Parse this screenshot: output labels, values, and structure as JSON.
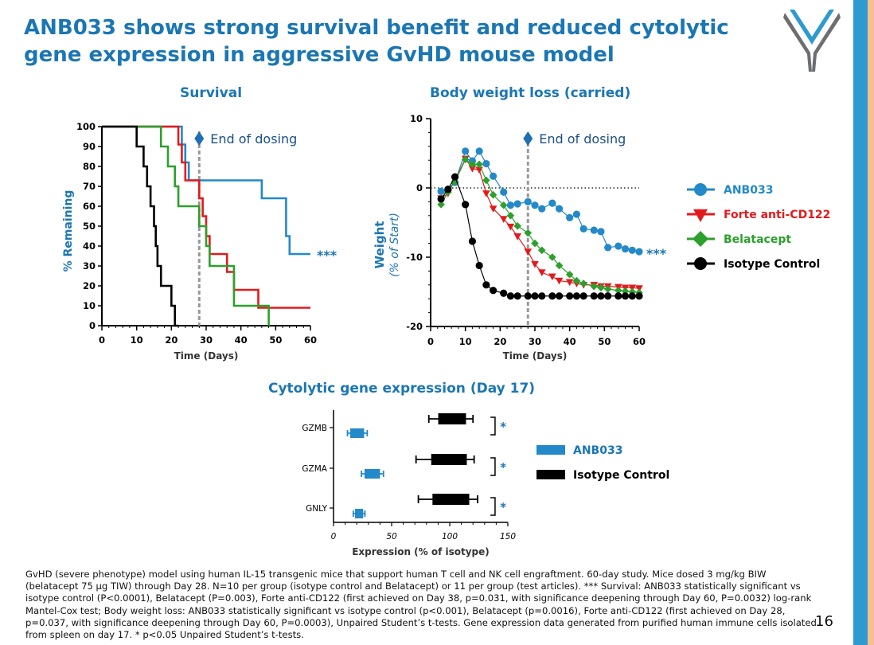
{
  "slide": {
    "title": "ANB033 shows strong survival benefit and reduced cytolytic gene expression in aggressive GvHD mouse model",
    "page_number": "16",
    "footnote": "GvHD (severe phenotype) model using human IL-15 transgenic mice that support human T cell and NK cell engraftment. 60-day study.  Mice dosed 3 mg/kg BIW (belatacept 75 µg TIW) through Day 28. N=10 per group (isotype control and Belatacept) or 11 per group (test articles). *** Survival: ANB033 statistically significant vs isotype control (P<0.0001), Belatacept (P=0.003), Forte anti-CD122 (first achieved on Day 38, p=0.031, with significance deepening through Day 60, P=0.0032) log-rank Mantel-Cox test; Body weight loss: ANB033 statistically significant vs isotype control (p<0.001), Belatacept (p=0.0016), Forte anti-CD122 (first achieved on Day 28, p=0.037, with significance deepening through Day 60, P=0.0003), Unpaired Student’s t-tests. Gene expression data generated from purified human immune cells isolated from spleen on day 17. * p<0.05 Unpaired Student’s t-tests.",
    "colors": {
      "title": "#1b76b4",
      "accent_blue": "#2e9bd0",
      "accent_peach": "#f6c08e"
    }
  },
  "legend_main": [
    {
      "label": "ANB033",
      "color": "#2389c9",
      "marker": "circle"
    },
    {
      "label": "Forte anti-CD122",
      "color": "#e31a1c",
      "marker": "triangle-down"
    },
    {
      "label": "Belatacept",
      "color": "#2ca02c",
      "marker": "diamond"
    },
    {
      "label": "Isotype Control",
      "color": "#000000",
      "marker": "circle"
    }
  ],
  "legend_expr": [
    {
      "label": "ANB033",
      "color": "#2389c9"
    },
    {
      "label": "Isotype Control",
      "color": "#000000"
    }
  ],
  "chart_data": [
    {
      "type": "line",
      "title": "Survival",
      "xlabel": "Time (Days)",
      "ylabel": "% Remaining",
      "xlim": [
        0,
        60
      ],
      "ylim": [
        0,
        100
      ],
      "xticks": [
        0,
        10,
        20,
        30,
        40,
        50,
        60
      ],
      "yticks": [
        0,
        10,
        20,
        30,
        40,
        50,
        60,
        70,
        80,
        90,
        100
      ],
      "annotation": "End of dosing",
      "annotation_x": 28,
      "significance": "***",
      "series": [
        {
          "name": "ANB033",
          "color": "#2389c9",
          "step": [
            [
              0,
              100
            ],
            [
              23,
              100
            ],
            [
              23,
              91
            ],
            [
              24,
              91
            ],
            [
              24,
              82
            ],
            [
              25,
              82
            ],
            [
              25,
              73
            ],
            [
              46,
              73
            ],
            [
              46,
              64
            ],
            [
              53,
              64
            ],
            [
              53,
              45
            ],
            [
              54,
              45
            ],
            [
              54,
              36
            ],
            [
              60,
              36
            ]
          ]
        },
        {
          "name": "Forte anti-CD122",
          "color": "#e31a1c",
          "step": [
            [
              0,
              100
            ],
            [
              22,
              100
            ],
            [
              22,
              91
            ],
            [
              23,
              91
            ],
            [
              23,
              82
            ],
            [
              24,
              82
            ],
            [
              24,
              73
            ],
            [
              28,
              73
            ],
            [
              28,
              64
            ],
            [
              29,
              64
            ],
            [
              29,
              55
            ],
            [
              30,
              55
            ],
            [
              30,
              45
            ],
            [
              31,
              45
            ],
            [
              31,
              36
            ],
            [
              36,
              36
            ],
            [
              36,
              27
            ],
            [
              38,
              27
            ],
            [
              38,
              18
            ],
            [
              45,
              18
            ],
            [
              45,
              9
            ],
            [
              60,
              9
            ]
          ]
        },
        {
          "name": "Belatacept",
          "color": "#2ca02c",
          "step": [
            [
              0,
              100
            ],
            [
              17,
              100
            ],
            [
              17,
              90
            ],
            [
              19,
              90
            ],
            [
              19,
              80
            ],
            [
              21,
              80
            ],
            [
              21,
              70
            ],
            [
              22,
              70
            ],
            [
              22,
              60
            ],
            [
              28,
              60
            ],
            [
              28,
              50
            ],
            [
              30,
              50
            ],
            [
              30,
              40
            ],
            [
              31,
              40
            ],
            [
              31,
              30
            ],
            [
              38,
              30
            ],
            [
              38,
              10
            ],
            [
              48,
              10
            ],
            [
              48,
              0
            ]
          ]
        },
        {
          "name": "Isotype Control",
          "color": "#000000",
          "step": [
            [
              0,
              100
            ],
            [
              10,
              100
            ],
            [
              10,
              90
            ],
            [
              12,
              90
            ],
            [
              12,
              80
            ],
            [
              13,
              80
            ],
            [
              13,
              70
            ],
            [
              14,
              70
            ],
            [
              14,
              60
            ],
            [
              15,
              60
            ],
            [
              15,
              50
            ],
            [
              15.5,
              50
            ],
            [
              15.5,
              40
            ],
            [
              16,
              40
            ],
            [
              16,
              30
            ],
            [
              17,
              30
            ],
            [
              17,
              20
            ],
            [
              20,
              20
            ],
            [
              20,
              10
            ],
            [
              21,
              10
            ],
            [
              21,
              0
            ],
            [
              22,
              0
            ]
          ]
        }
      ]
    },
    {
      "type": "line",
      "title": "Body weight loss (carried)",
      "xlabel": "Time (Days)",
      "ylabel": "Weight",
      "ylabel_sub": "(% of Start)",
      "xlim": [
        0,
        60
      ],
      "ylim": [
        -20,
        10
      ],
      "xticks": [
        0,
        10,
        20,
        30,
        40,
        50,
        60
      ],
      "yticks": [
        -20,
        -10,
        0,
        10
      ],
      "annotation": "End of dosing",
      "annotation_x": 28,
      "significance": "***",
      "series": [
        {
          "name": "ANB033",
          "color": "#2389c9",
          "marker": "circle",
          "x": [
            3,
            5,
            7,
            10,
            12,
            14,
            16,
            18,
            21,
            23,
            25,
            28,
            30,
            32,
            35,
            37,
            40,
            42,
            44,
            47,
            49,
            51,
            54,
            56,
            58,
            60
          ],
          "y": [
            -0.5,
            -0.2,
            0.8,
            5.3,
            3.9,
            5.3,
            3.5,
            1.7,
            -0.6,
            -2.5,
            -2.3,
            -2.0,
            -2.5,
            -3.0,
            -2.2,
            -3.0,
            -4.3,
            -3.8,
            -5.9,
            -6.1,
            -6.3,
            -8.6,
            -8.4,
            -8.8,
            -9.0,
            -9.2
          ]
        },
        {
          "name": "Forte anti-CD122",
          "color": "#e31a1c",
          "marker": "triangle",
          "x": [
            3,
            5,
            7,
            10,
            12,
            14,
            16,
            18,
            21,
            23,
            25,
            28,
            30,
            32,
            35,
            37,
            40,
            42,
            44,
            47,
            49,
            51,
            54,
            56,
            58,
            60
          ],
          "y": [
            -1.5,
            -0.8,
            1.1,
            4.2,
            2.8,
            2.6,
            -0.8,
            -3.0,
            -4.5,
            -5.6,
            -7.0,
            -9.2,
            -11.0,
            -12.2,
            -12.8,
            -13.4,
            -13.6,
            -13.8,
            -14.0,
            -14.0,
            -14.2,
            -14.2,
            -14.3,
            -14.4,
            -14.4,
            -14.5
          ]
        },
        {
          "name": "Belatacept",
          "color": "#2ca02c",
          "marker": "diamond",
          "x": [
            3,
            5,
            7,
            10,
            12,
            14,
            16,
            18,
            21,
            23,
            25,
            28,
            30,
            32,
            35,
            37,
            40,
            42,
            44,
            47,
            49,
            51,
            54,
            56,
            58,
            60
          ],
          "y": [
            -2.4,
            -0.6,
            0.9,
            4.1,
            3.4,
            3.4,
            1.1,
            -1.0,
            -2.5,
            -4.0,
            -5.5,
            -6.5,
            -8.0,
            -9.0,
            -10.0,
            -11.2,
            -12.5,
            -13.4,
            -13.8,
            -14.2,
            -14.4,
            -14.6,
            -14.8,
            -14.9,
            -15.0,
            -15.1
          ]
        },
        {
          "name": "Isotype Control",
          "color": "#000000",
          "marker": "circle",
          "x": [
            3,
            5,
            7,
            10,
            12,
            14,
            16,
            18,
            21,
            23,
            25,
            28,
            30,
            32,
            35,
            37,
            40,
            42,
            44,
            47,
            49,
            51,
            54,
            56,
            58,
            60
          ],
          "y": [
            -1.6,
            -0.2,
            1.6,
            -2.4,
            -7.7,
            -11.2,
            -14.0,
            -14.8,
            -15.2,
            -15.6,
            -15.6,
            -15.6,
            -15.6,
            -15.6,
            -15.6,
            -15.6,
            -15.6,
            -15.6,
            -15.6,
            -15.6,
            -15.6,
            -15.6,
            -15.6,
            -15.6,
            -15.6,
            -15.6
          ]
        }
      ]
    },
    {
      "type": "bar",
      "orientation": "horizontal",
      "title": "Cytolytic gene expression (Day 17)",
      "xlabel": "Expression (% of isotype)",
      "xlim": [
        0,
        150
      ],
      "xticks": [
        0,
        50,
        100,
        150
      ],
      "categories": [
        "GZMB",
        "GZMA",
        "GNLY"
      ],
      "significance": [
        "*",
        "*",
        "*"
      ],
      "series": [
        {
          "name": "ANB033",
          "color": "#2389c9",
          "values": [
            20,
            33,
            22
          ],
          "low": [
            12,
            24,
            17
          ],
          "high": [
            29,
            43,
            27
          ],
          "error": [
            10,
            9,
            5
          ]
        },
        {
          "name": "Isotype Control",
          "color": "#000000",
          "values": [
            100,
            100,
            100
          ],
          "low": [
            82,
            71,
            73
          ],
          "high": [
            120,
            121,
            124
          ],
          "error": [
            22,
            24,
            19
          ]
        }
      ]
    }
  ]
}
